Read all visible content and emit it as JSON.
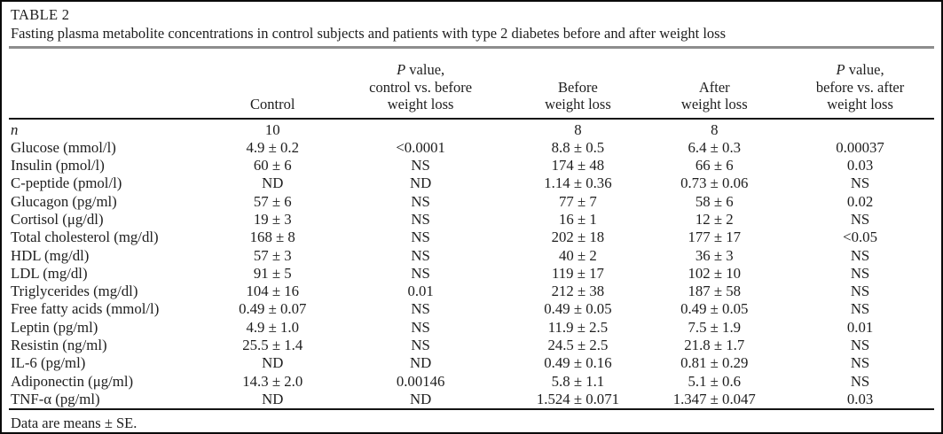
{
  "colors": {
    "outer_border": "#0a0a0a",
    "rule_black": "#141414",
    "rule_gray": "#8d8d8d",
    "text": "#1e1e1e",
    "background": "#ffffff"
  },
  "table": {
    "label": "TABLE 2",
    "caption": "Fasting plasma metabolite concentrations in control subjects and patients with type 2 diabetes before and after weight loss",
    "headers": {
      "control": "Control",
      "pvalue_control_before": {
        "italic": "P",
        "line1_rest": " value,",
        "line2": "control vs. before",
        "line3": "weight loss"
      },
      "before": {
        "line1": "Before",
        "line2": "weight loss"
      },
      "after": {
        "line1": "After",
        "line2": "weight loss"
      },
      "pvalue_before_after": {
        "italic": "P",
        "line1_rest": " value,",
        "line2": "before vs. after",
        "line3": "weight loss"
      }
    },
    "rows": [
      {
        "label": "n",
        "italic": true,
        "cells": [
          "10",
          "",
          "8",
          "8",
          ""
        ]
      },
      {
        "label": "Glucose (mmol/l)",
        "cells": [
          "4.9 ± 0.2",
          "<0.0001",
          "8.8 ± 0.5",
          "6.4 ± 0.3",
          "0.00037"
        ]
      },
      {
        "label": "Insulin (pmol/l)",
        "cells": [
          "60 ± 6",
          "NS",
          "174 ± 48",
          "66 ± 6",
          "0.03"
        ]
      },
      {
        "label": "C-peptide (pmol/l)",
        "cells": [
          "ND",
          "ND",
          "1.14 ± 0.36",
          "0.73 ± 0.06",
          "NS"
        ]
      },
      {
        "label": "Glucagon (pg/ml)",
        "cells": [
          "57 ± 6",
          "NS",
          "77 ± 7",
          "58 ± 6",
          "0.02"
        ]
      },
      {
        "label": "Cortisol (μg/dl)",
        "cells": [
          "19 ± 3",
          "NS",
          "16 ± 1",
          "12 ± 2",
          "NS"
        ]
      },
      {
        "label": "Total cholesterol (mg/dl)",
        "cells": [
          "168 ± 8",
          "NS",
          "202 ± 18",
          "177 ± 17",
          "<0.05"
        ]
      },
      {
        "label": "HDL (mg/dl)",
        "cells": [
          "57 ± 3",
          "NS",
          "40 ± 2",
          "36 ± 3",
          "NS"
        ]
      },
      {
        "label": "LDL (mg/dl)",
        "cells": [
          "91 ± 5",
          "NS",
          "119 ± 17",
          "102 ± 10",
          "NS"
        ]
      },
      {
        "label": "Triglycerides (mg/dl)",
        "cells": [
          "104 ± 16",
          "0.01",
          "212 ± 38",
          "187 ± 58",
          "NS"
        ]
      },
      {
        "label": "Free fatty acids (mmol/l)",
        "cells": [
          "0.49 ± 0.07",
          "NS",
          "0.49 ± 0.05",
          "0.49 ± 0.05",
          "NS"
        ]
      },
      {
        "label": "Leptin (pg/ml)",
        "cells": [
          "4.9 ± 1.0",
          "NS",
          "11.9 ± 2.5",
          "7.5 ± 1.9",
          "0.01"
        ]
      },
      {
        "label": "Resistin (ng/ml)",
        "cells": [
          "25.5 ± 1.4",
          "NS",
          "24.5 ± 2.5",
          "21.8 ± 1.7",
          "NS"
        ]
      },
      {
        "label": "IL-6 (pg/ml)",
        "cells": [
          "ND",
          "ND",
          "0.49 ± 0.16",
          "0.81 ± 0.29",
          "NS"
        ]
      },
      {
        "label": "Adiponectin (μg/ml)",
        "cells": [
          "14.3 ± 2.0",
          "0.00146",
          "5.8 ± 1.1",
          "5.1 ± 0.6",
          "NS"
        ]
      },
      {
        "label": "TNF-α (pg/ml)",
        "cells": [
          "ND",
          "ND",
          "1.524 ± 0.071",
          "1.347 ± 0.047",
          "0.03"
        ]
      }
    ],
    "footnote": "Data are means ± SE."
  }
}
